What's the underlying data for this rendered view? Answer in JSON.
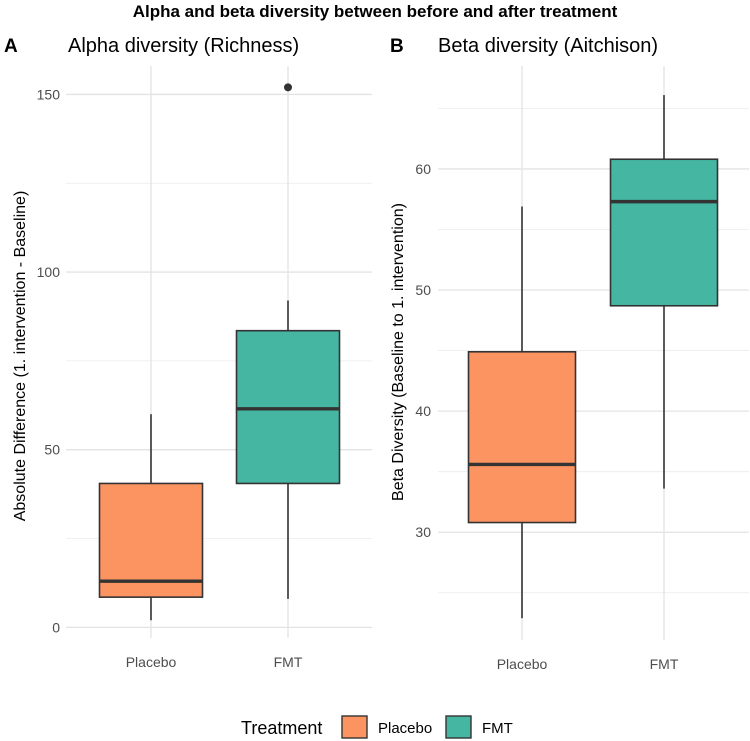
{
  "figure_title": "Alpha and beta diversity between before and after treatment",
  "legend": {
    "title": "Treatment",
    "items": [
      {
        "label": "Placebo",
        "color": "#fc9462"
      },
      {
        "label": "FMT",
        "color": "#45b6a1"
      }
    ]
  },
  "chart_data": [
    {
      "type": "box",
      "panel_label": "A",
      "title": "Alpha diversity (Richness)",
      "xlabel": "",
      "ylabel": "Absolute Difference (1. intervention - Baseline)",
      "ylim": [
        -3,
        158
      ],
      "yticks": [
        0,
        50,
        100,
        150
      ],
      "categories": [
        "Placebo",
        "FMT"
      ],
      "colors": [
        "#fc9462",
        "#45b6a1"
      ],
      "boxes": [
        {
          "name": "Placebo",
          "lower_whisker": 2,
          "q1": 8.5,
          "median": 13,
          "q3": 40.5,
          "upper_whisker": 60,
          "outliers": []
        },
        {
          "name": "FMT",
          "lower_whisker": 8,
          "q1": 40.5,
          "median": 61.5,
          "q3": 83.5,
          "upper_whisker": 92,
          "outliers": [
            152
          ]
        }
      ],
      "grid": true
    },
    {
      "type": "box",
      "panel_label": "B",
      "title": "Beta diversity (Aitchison)",
      "xlabel": "",
      "ylabel": "Beta Diversity (Baseline to 1. intervention)",
      "ylim": [
        21.1,
        68.5
      ],
      "yticks": [
        30,
        40,
        50,
        60
      ],
      "categories": [
        "Placebo",
        "FMT"
      ],
      "colors": [
        "#fc9462",
        "#45b6a1"
      ],
      "boxes": [
        {
          "name": "Placebo",
          "lower_whisker": 22.9,
          "q1": 30.8,
          "median": 35.6,
          "q3": 44.9,
          "upper_whisker": 56.9,
          "outliers": []
        },
        {
          "name": "FMT",
          "lower_whisker": 33.6,
          "q1": 48.7,
          "median": 57.3,
          "q3": 60.8,
          "upper_whisker": 66.1,
          "outliers": []
        }
      ],
      "grid": true
    }
  ]
}
